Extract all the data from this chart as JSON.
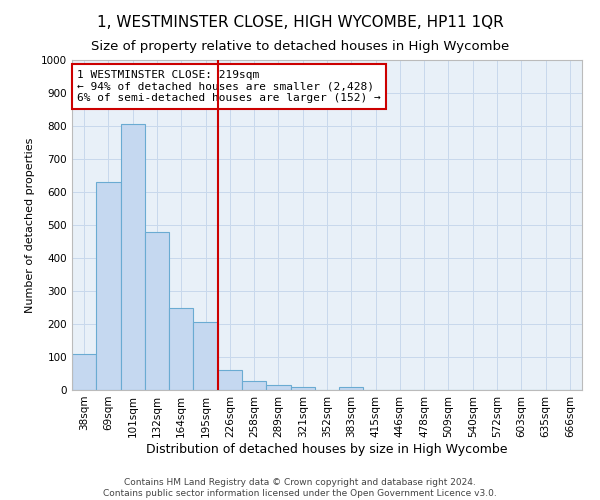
{
  "title": "1, WESTMINSTER CLOSE, HIGH WYCOMBE, HP11 1QR",
  "subtitle": "Size of property relative to detached houses in High Wycombe",
  "xlabel": "Distribution of detached houses by size in High Wycombe",
  "ylabel": "Number of detached properties",
  "footer_line1": "Contains HM Land Registry data © Crown copyright and database right 2024.",
  "footer_line2": "Contains public sector information licensed under the Open Government Licence v3.0.",
  "bar_labels": [
    "38sqm",
    "69sqm",
    "101sqm",
    "132sqm",
    "164sqm",
    "195sqm",
    "226sqm",
    "258sqm",
    "289sqm",
    "321sqm",
    "352sqm",
    "383sqm",
    "415sqm",
    "446sqm",
    "478sqm",
    "509sqm",
    "540sqm",
    "572sqm",
    "603sqm",
    "635sqm",
    "666sqm"
  ],
  "bar_values": [
    110,
    630,
    805,
    480,
    250,
    205,
    60,
    27,
    15,
    10,
    0,
    10,
    0,
    0,
    0,
    0,
    0,
    0,
    0,
    0,
    0
  ],
  "bar_color": "#c5d8f0",
  "bar_edge_color": "#6aabd2",
  "vline_index": 6,
  "vline_color": "#cc0000",
  "annotation_text": "1 WESTMINSTER CLOSE: 219sqm\n← 94% of detached houses are smaller (2,428)\n6% of semi-detached houses are larger (152) →",
  "annotation_box_facecolor": "#ffffff",
  "annotation_box_edgecolor": "#cc0000",
  "ylim": [
    0,
    1000
  ],
  "yticks": [
    0,
    100,
    200,
    300,
    400,
    500,
    600,
    700,
    800,
    900,
    1000
  ],
  "grid_color": "#c8d8ec",
  "bg_color": "#e8f0f8",
  "title_fontsize": 11,
  "subtitle_fontsize": 9.5,
  "xlabel_fontsize": 9,
  "ylabel_fontsize": 8,
  "tick_fontsize": 7.5,
  "annotation_fontsize": 8,
  "footer_fontsize": 6.5
}
